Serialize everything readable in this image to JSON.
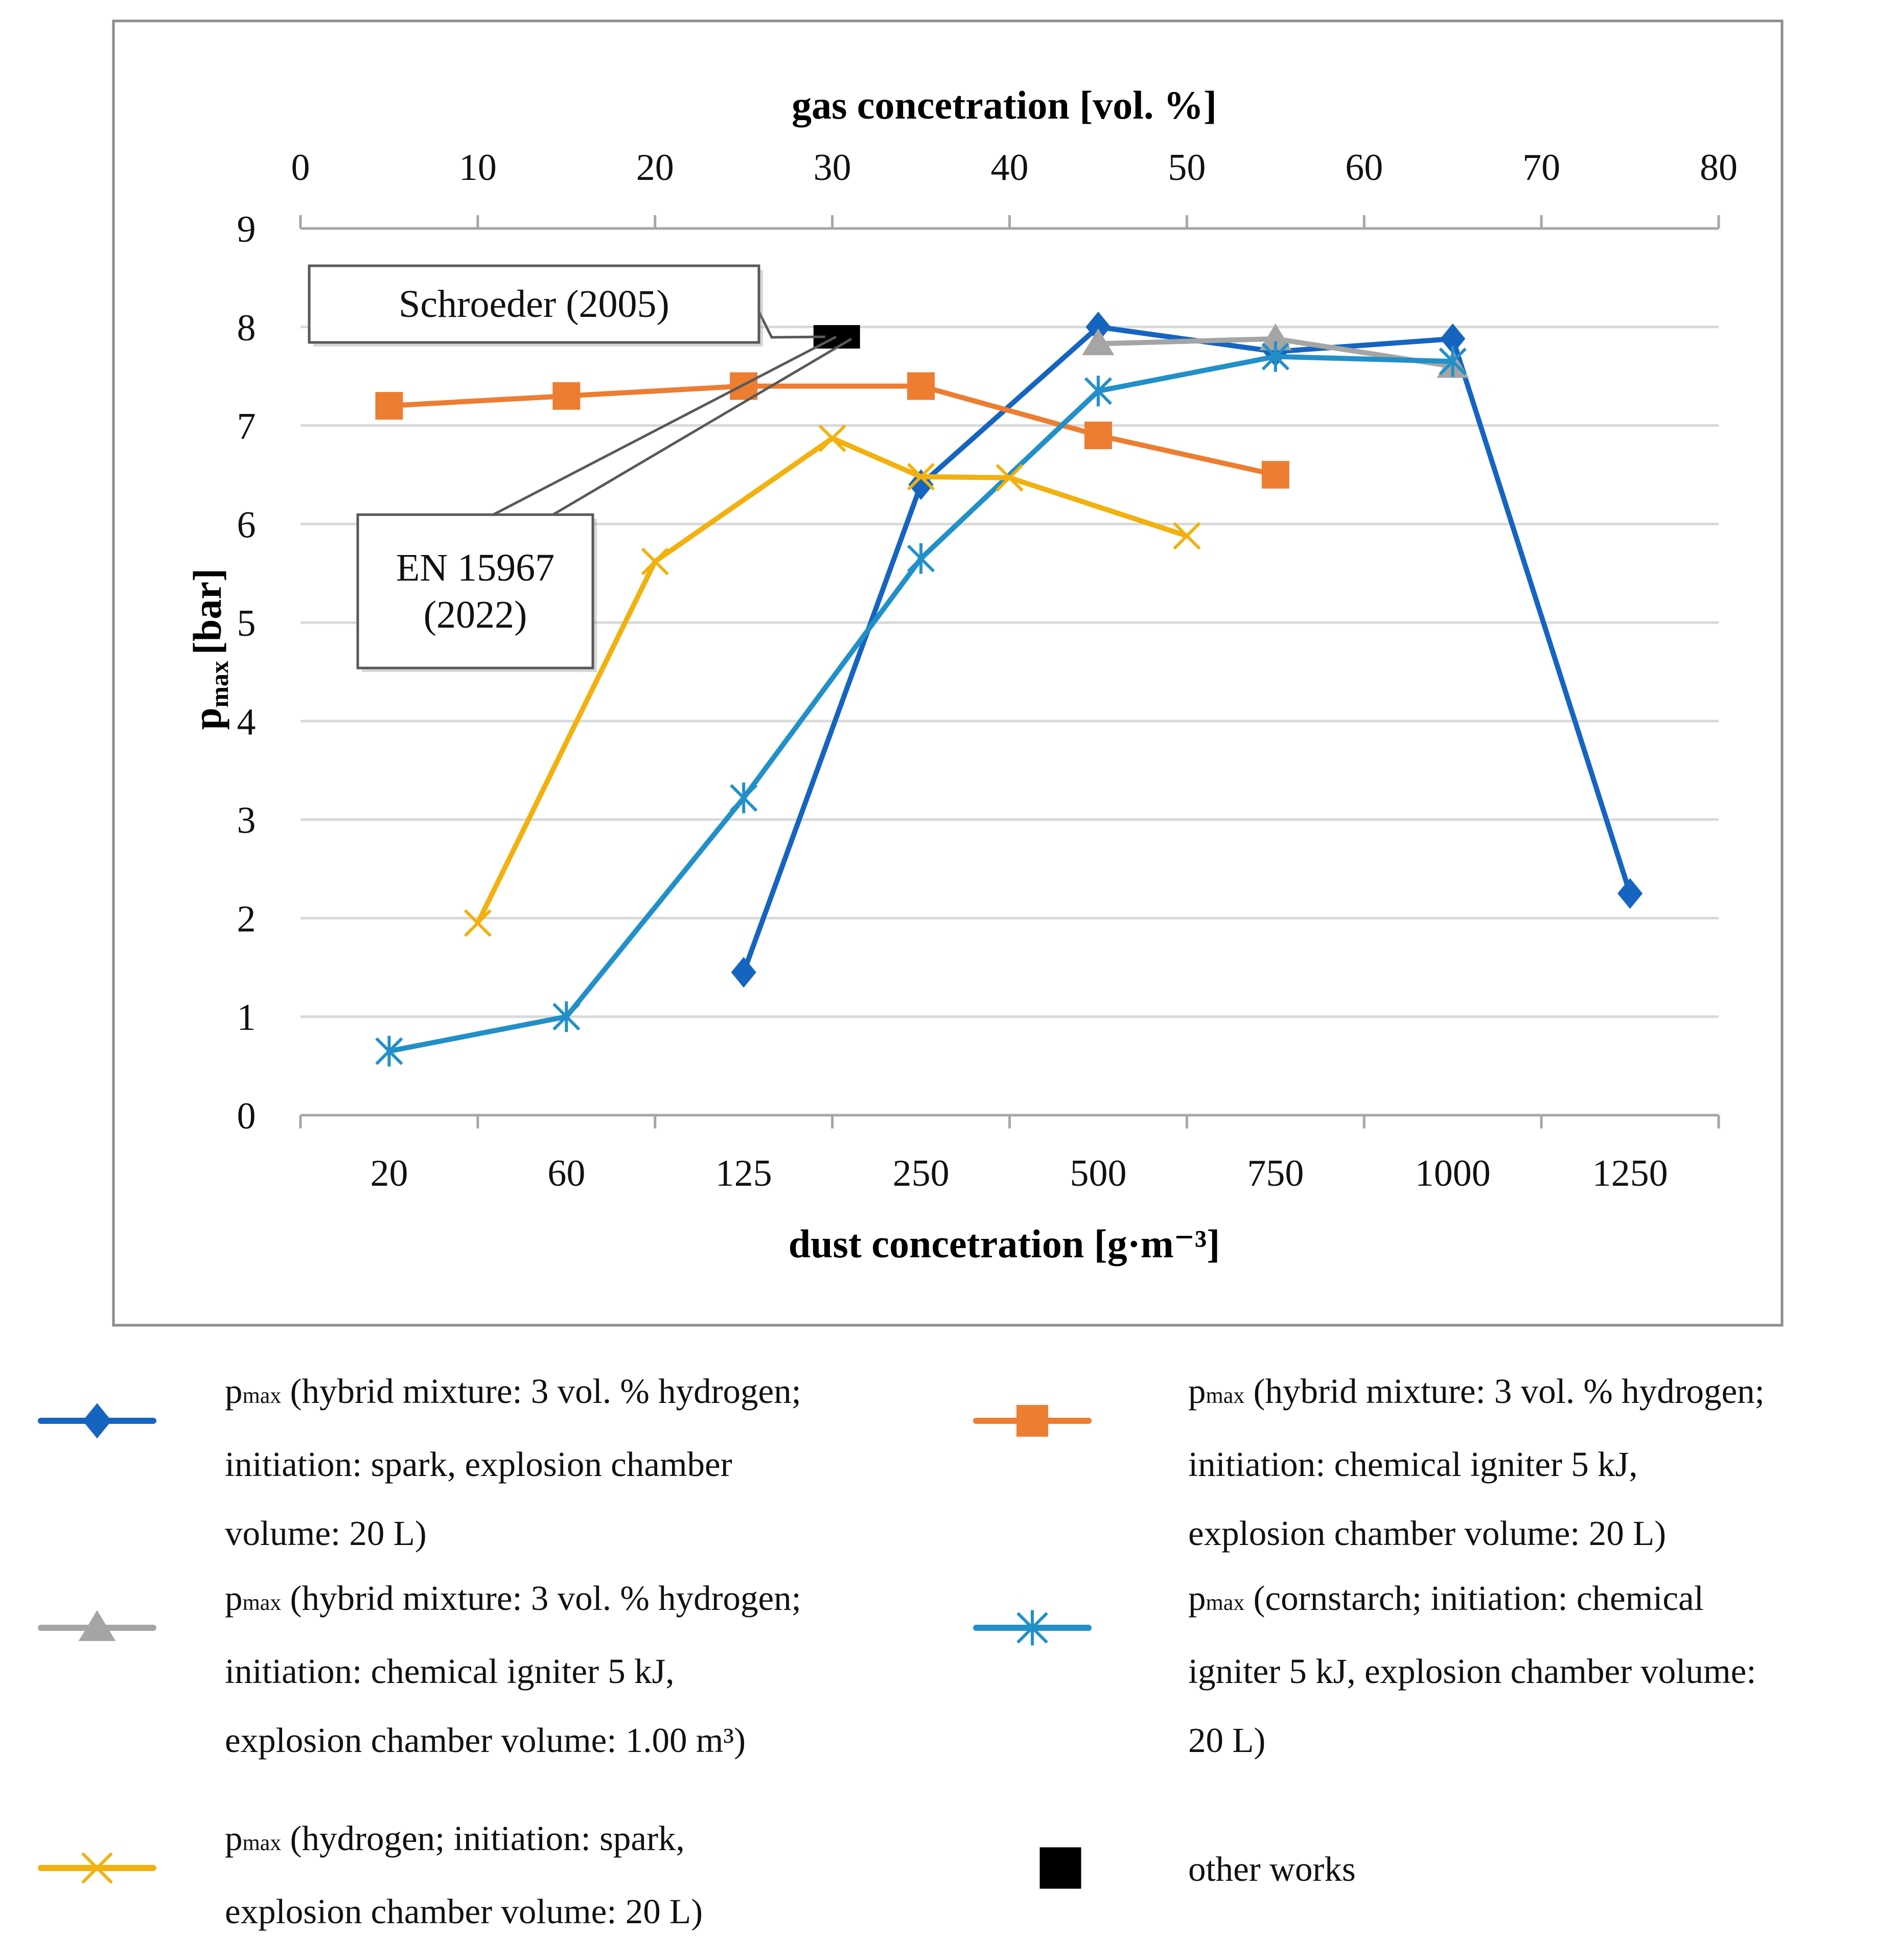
{
  "chart_data": {
    "type": "line",
    "title": "",
    "xlabel": "dust concetration [g·m⁻³]",
    "x2label": "gas concetration [vol. %]",
    "ylabel": "pmax [bar]",
    "ylabel_main": "p",
    "ylabel_sub": "max",
    "ylabel_unit": "[bar]",
    "categories": [
      "20",
      "60",
      "125",
      "250",
      "500",
      "750",
      "1000",
      "1250"
    ],
    "x2_ticks": [
      "0",
      "10",
      "20",
      "30",
      "40",
      "50",
      "60",
      "70",
      "80"
    ],
    "x2_range": [
      0,
      80
    ],
    "y_ticks": [
      "0",
      "1",
      "2",
      "3",
      "4",
      "5",
      "6",
      "7",
      "8",
      "9"
    ],
    "ylim": [
      0,
      9
    ],
    "grid": true,
    "series": [
      {
        "name": "pmax (hybrid mixture: 3 vol. % hydrogen; initiation: spark, explosion chamber volume: 20 L)",
        "color": "#1565C0",
        "marker": "diamond",
        "axis": "dust",
        "points": [
          {
            "x": "125",
            "y": 1.45
          },
          {
            "x": "250",
            "y": 6.4
          },
          {
            "x": "500",
            "y": 8.0
          },
          {
            "x": "750",
            "y": 7.75
          },
          {
            "x": "1000",
            "y": 7.88
          },
          {
            "x": "1250",
            "y": 2.25
          }
        ]
      },
      {
        "name": "pmax (hybrid mixture: 3 vol. % hydrogen; initiation: chemical igniter 5 kJ, explosion chamber volume: 20 L)",
        "color": "#ED7D31",
        "marker": "square",
        "axis": "dust",
        "points": [
          {
            "x": "20",
            "y": 7.2
          },
          {
            "x": "60",
            "y": 7.3
          },
          {
            "x": "125",
            "y": 7.4
          },
          {
            "x": "250",
            "y": 7.4
          },
          {
            "x": "500",
            "y": 6.9
          },
          {
            "x": "750",
            "y": 6.5
          }
        ]
      },
      {
        "name": "pmax (hybrid mixture: 3 vol. % hydrogen; initiation: chemical igniter 5 kJ, explosion chamber volume: 1.00 m³)",
        "color": "#A5A5A5",
        "marker": "triangle",
        "axis": "dust",
        "points": [
          {
            "x": "500",
            "y": 7.83
          },
          {
            "x": "750",
            "y": 7.88
          },
          {
            "x": "1000",
            "y": 7.6
          }
        ]
      },
      {
        "name": "pmax (cornstarch; initiation: chemical igniter 5 kJ, explosion chamber volume: 20 L)",
        "color": "#2290C8",
        "marker": "star",
        "axis": "dust",
        "points": [
          {
            "x": "20",
            "y": 0.65
          },
          {
            "x": "60",
            "y": 1.0
          },
          {
            "x": "125",
            "y": 3.22
          },
          {
            "x": "250",
            "y": 5.65
          },
          {
            "x": "500",
            "y": 7.35
          },
          {
            "x": "750",
            "y": 7.7
          },
          {
            "x": "1000",
            "y": 7.65
          }
        ]
      },
      {
        "name": "pmax (hydrogen; initiation: spark, explosion chamber volume: 20 L)",
        "color": "#F2B10E",
        "marker": "x",
        "axis": "gas",
        "points": [
          {
            "x": 10,
            "y": 1.95
          },
          {
            "x": 20,
            "y": 5.62
          },
          {
            "x": 30,
            "y": 6.87
          },
          {
            "x": 35,
            "y": 6.48
          },
          {
            "x": 40,
            "y": 6.47
          },
          {
            "x": 50,
            "y": 5.88
          }
        ]
      },
      {
        "name": "other works",
        "color": "#000000",
        "marker": "square",
        "axis": "gas",
        "points": [
          {
            "x": 29.6,
            "y": 7.9
          },
          {
            "x": 30.9,
            "y": 7.9
          }
        ]
      }
    ],
    "annotations": [
      {
        "text": "Schroeder (2005)",
        "lines": [
          "Schroeder (2005)"
        ],
        "points_to": {
          "axis": "gas",
          "x": 29.6,
          "y": 7.9
        }
      },
      {
        "text": "EN 15967 (2022)",
        "lines": [
          "EN 15967",
          "(2022)"
        ],
        "points_to": {
          "axis": "gas",
          "x": 30.5,
          "y": 7.9
        }
      }
    ]
  },
  "legend": {
    "items": [
      {
        "key": "blue",
        "color": "#1565C0",
        "marker": "diamond",
        "prefix": "p",
        "sub": "max",
        "lines": [
          " (hybrid mixture: 3 vol. % hydrogen;",
          "initiation: spark, explosion chamber",
          "volume: 20 L)"
        ]
      },
      {
        "key": "orange",
        "color": "#ED7D31",
        "marker": "square",
        "prefix": "p",
        "sub": "max",
        "lines": [
          " (hybrid mixture: 3 vol. % hydrogen;",
          "initiation: chemical igniter 5 kJ,",
          "explosion chamber volume: 20 L)"
        ]
      },
      {
        "key": "gray",
        "color": "#A5A5A5",
        "marker": "triangle",
        "prefix": "p",
        "sub": "max",
        "lines": [
          " (hybrid mixture: 3 vol. % hydrogen;",
          "initiation: chemical igniter 5 kJ,",
          "explosion chamber volume: 1.00 m³)"
        ]
      },
      {
        "key": "lightblue",
        "color": "#2290C8",
        "marker": "star",
        "prefix": "p",
        "sub": "max",
        "lines": [
          " (cornstarch; initiation: chemical",
          "igniter 5 kJ, explosion chamber volume:",
          "20 L)"
        ]
      },
      {
        "key": "yellow",
        "color": "#F2B10E",
        "marker": "x",
        "prefix": "p",
        "sub": "max",
        "lines": [
          " (hydrogen; initiation: spark,",
          "explosion chamber volume: 20 L)"
        ]
      },
      {
        "key": "black",
        "color": "#000000",
        "marker": "square",
        "prefix": "",
        "sub": "",
        "lines": [
          "other works"
        ]
      }
    ]
  }
}
